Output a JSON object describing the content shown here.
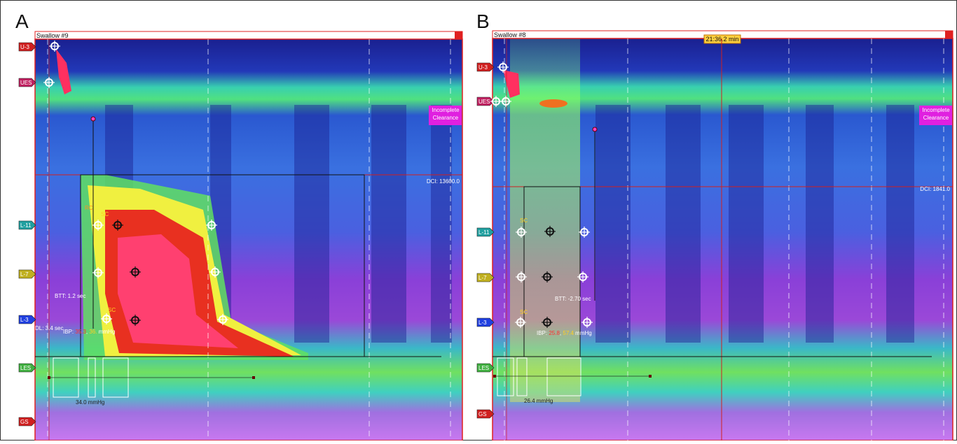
{
  "panels": [
    {
      "letter": "A",
      "title": "Swallow #9",
      "sensors": [
        "U-3",
        "UES",
        "L-11",
        "L-7",
        "L-3",
        "LES",
        "GS"
      ],
      "flag": [
        "Incomplete",
        "Clearance"
      ],
      "dci": "DCI: 13600.0",
      "labels": [
        "RC",
        "SC",
        "SC",
        "BTT: 1.2 sec",
        "DL: 3.4 sec",
        "34.0 mmHg"
      ],
      "ibp": [
        "IBP: ",
        "35.3",
        ", ",
        "36.",
        " mmHg"
      ]
    },
    {
      "letter": "B",
      "title": "Swallow #8",
      "time": "21:36.2 min",
      "sensors": [
        "U-3",
        "UES",
        "L-11",
        "L-7",
        "L-3",
        "LES",
        "GS"
      ],
      "flag": [
        "Incomplete",
        "Clearance"
      ],
      "dci": "DCI: 1841.0",
      "labels": [
        "SC",
        "SC",
        "BTT: -2.70 sec",
        "26.4 mmHg"
      ],
      "ibp": [
        "IBP: ",
        "25.8",
        ", ",
        "57.4",
        " mmHg"
      ]
    }
  ]
}
